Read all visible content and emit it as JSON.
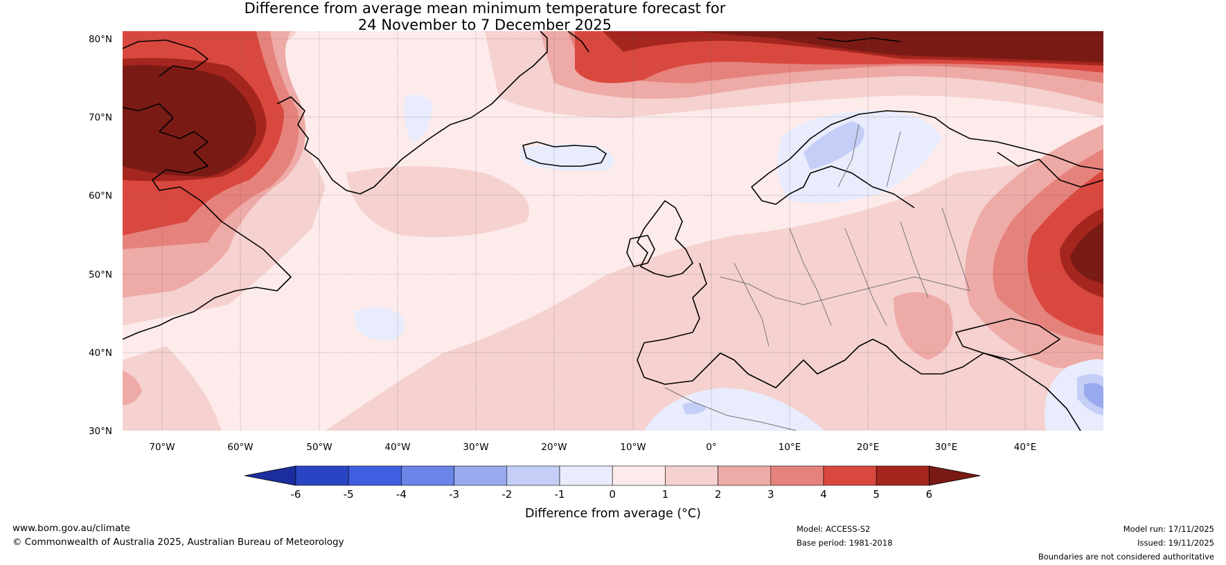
{
  "title": {
    "line1": "Difference from average mean minimum temperature forecast for",
    "line2": "24 November to 7 December 2025"
  },
  "map": {
    "lat_labels": [
      "80°N",
      "70°N",
      "60°N",
      "50°N",
      "40°N",
      "30°N"
    ],
    "lon_labels": [
      "70°W",
      "60°W",
      "50°W",
      "40°W",
      "30°W",
      "20°W",
      "10°W",
      "0°",
      "10°E",
      "20°E",
      "30°E",
      "40°E"
    ],
    "extent": {
      "lon": [
        -75,
        50
      ],
      "lat": [
        30,
        81
      ]
    }
  },
  "colorbar": {
    "ticks": [
      "-6",
      "-5",
      "-4",
      "-3",
      "-2",
      "-1",
      "0",
      "1",
      "2",
      "3",
      "4",
      "5",
      "6"
    ],
    "colors": [
      "#1c2e9e",
      "#2a45c3",
      "#3f5fe0",
      "#6a84e8",
      "#98a9ee",
      "#c4cef6",
      "#e8ecfc",
      "#fcebea",
      "#f5d1cf",
      "#eeaaa6",
      "#e5827c",
      "#d9483f",
      "#a5261e",
      "#7a1a15"
    ],
    "label": "Difference from average (°C)"
  },
  "footer": {
    "website": "www.bom.gov.au/climate",
    "copyright": "© Commonwealth of Australia 2025, Australian Bureau of Meteorology",
    "model": "Model: ACCESS-S2",
    "base_period": "Base period: 1981-2018",
    "model_run": "Model run: 17/11/2025",
    "issued": "Issued: 19/11/2025",
    "disclaimer": "Boundaries are not considered authoritative"
  }
}
